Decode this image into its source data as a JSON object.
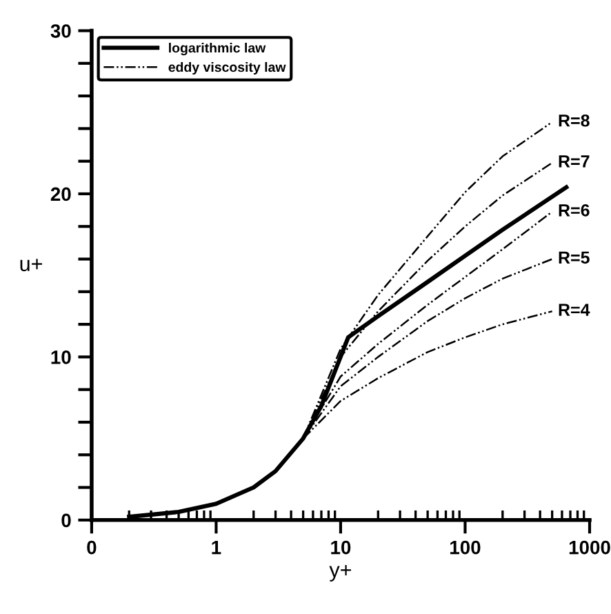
{
  "chart_data": {
    "type": "line",
    "xlabel": "y+",
    "ylabel": "u+",
    "log": "x",
    "grid": false,
    "legend": "top left",
    "marker": "none",
    "xlim": [
      0.1,
      1000
    ],
    "xticks": [
      {
        "value": 0.1,
        "label": "0"
      },
      1,
      10,
      100,
      1000
    ],
    "ylim": [
      0,
      30
    ],
    "yticks": [
      0,
      {
        "value": 2,
        "label": null
      },
      {
        "value": 4,
        "label": null
      },
      {
        "value": 6,
        "label": null
      },
      {
        "value": 8,
        "label": null
      },
      10,
      {
        "value": 12,
        "label": null
      },
      {
        "value": 14,
        "label": null
      },
      {
        "value": 16,
        "label": null
      },
      {
        "value": 18,
        "label": null
      },
      20,
      {
        "value": 22,
        "label": null
      },
      {
        "value": 24,
        "label": null
      },
      {
        "value": 26,
        "label": null
      },
      {
        "value": 28,
        "label": null
      },
      30
    ],
    "series": [
      {
        "name": "logarithmic law",
        "color": "#000000",
        "line_style": "solid",
        "x": [
          0.2,
          0.5,
          1,
          2,
          3,
          5,
          7,
          11.5,
          20,
          50,
          100,
          200,
          650
        ],
        "values": [
          0.2,
          0.5,
          1,
          2,
          3,
          5,
          7,
          11.2,
          12.5,
          14.6,
          16.2,
          17.8,
          20.4
        ]
      },
      {
        "name": "eddy viscosity law",
        "color": "#000000",
        "line_style": "dashdot",
        "x": [
          5,
          10,
          20,
          50,
          100,
          200,
          500
        ],
        "values": [
          5,
          7.3,
          8.7,
          10.3,
          11.2,
          12.0,
          12.8
        ]
      },
      {
        "color": "#000000",
        "line_style": "dashdot",
        "x": [
          5,
          10,
          20,
          50,
          100,
          200,
          500
        ],
        "values": [
          5,
          8.2,
          10.0,
          12.2,
          13.6,
          14.8,
          16.0
        ]
      },
      {
        "color": "#000000",
        "line_style": "dashdot",
        "x": [
          5,
          10,
          20,
          50,
          100,
          200,
          500
        ],
        "values": [
          5,
          8.8,
          10.8,
          13.2,
          14.9,
          16.6,
          18.9
        ]
      },
      {
        "color": "#000000",
        "line_style": "dashdot",
        "x": [
          5,
          10,
          20,
          50,
          100,
          200,
          500
        ],
        "values": [
          5,
          10.0,
          12.8,
          15.9,
          18.0,
          19.9,
          21.9
        ]
      },
      {
        "color": "#000000",
        "line_style": "dashdot",
        "x": [
          5,
          10,
          20,
          50,
          100,
          200,
          500
        ],
        "values": [
          5,
          10.5,
          13.8,
          17.4,
          20.1,
          22.3,
          24.4
        ]
      }
    ],
    "annotations": [
      "R=8",
      "R=7",
      "R=6",
      "R=5",
      "R=4"
    ]
  }
}
